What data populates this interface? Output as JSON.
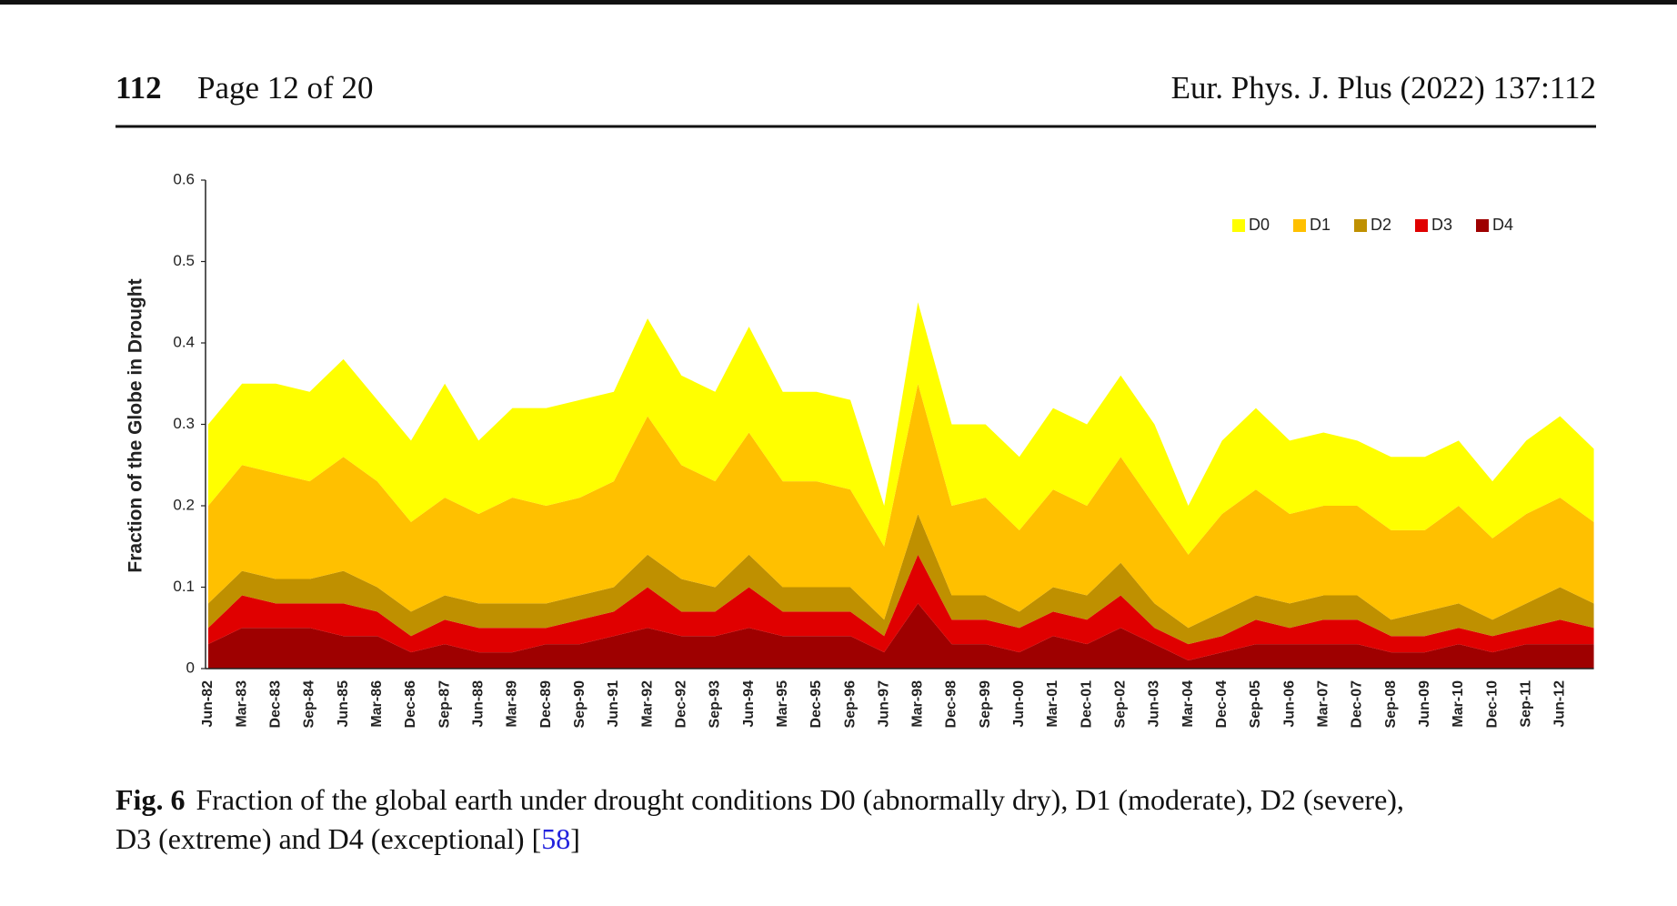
{
  "header": {
    "page_number": "112",
    "page_label": "Page 12 of 20",
    "journal": "Eur. Phys. J. Plus (2022) 137:112"
  },
  "chart_data": {
    "type": "stacked-area",
    "y_label": "Fraction of the Globe in Drought",
    "categories": [
      "Jun-82",
      "Mar-83",
      "Dec-83",
      "Sep-84",
      "Jun-85",
      "Mar-86",
      "Dec-86",
      "Sep-87",
      "Jun-88",
      "Mar-89",
      "Dec-89",
      "Sep-90",
      "Jun-91",
      "Mar-92",
      "Dec-92",
      "Sep-93",
      "Jun-94",
      "Mar-95",
      "Dec-95",
      "Sep-96",
      "Jun-97",
      "Mar-98",
      "Dec-98",
      "Sep-99",
      "Jun-00",
      "Mar-01",
      "Dec-01",
      "Sep-02",
      "Jun-03",
      "Mar-04",
      "Dec-04",
      "Sep-05",
      "Jun-06",
      "Mar-07",
      "Dec-07",
      "Sep-08",
      "Jun-09",
      "Mar-10",
      "Dec-10",
      "Sep-11",
      "Jun-12",
      null
    ],
    "series": [
      {
        "name": "D4",
        "color": "#9e0000",
        "values": [
          0.03,
          0.05,
          0.05,
          0.05,
          0.04,
          0.04,
          0.02,
          0.03,
          0.02,
          0.02,
          0.03,
          0.03,
          0.04,
          0.05,
          0.04,
          0.04,
          0.05,
          0.04,
          0.04,
          0.04,
          0.02,
          0.08,
          0.03,
          0.03,
          0.02,
          0.04,
          0.03,
          0.05,
          0.03,
          0.01,
          0.02,
          0.03,
          0.03,
          0.03,
          0.03,
          0.02,
          0.02,
          0.03,
          0.02,
          0.03,
          0.03,
          0.03
        ]
      },
      {
        "name": "D3",
        "color": "#e00000",
        "values": [
          0.02,
          0.04,
          0.03,
          0.03,
          0.04,
          0.03,
          0.02,
          0.03,
          0.03,
          0.03,
          0.02,
          0.03,
          0.03,
          0.05,
          0.03,
          0.03,
          0.05,
          0.03,
          0.03,
          0.03,
          0.02,
          0.06,
          0.03,
          0.03,
          0.03,
          0.03,
          0.03,
          0.04,
          0.02,
          0.02,
          0.02,
          0.03,
          0.02,
          0.03,
          0.03,
          0.02,
          0.02,
          0.02,
          0.02,
          0.02,
          0.03,
          0.02
        ]
      },
      {
        "name": "D2",
        "color": "#bf9000",
        "values": [
          0.03,
          0.03,
          0.03,
          0.03,
          0.04,
          0.03,
          0.03,
          0.03,
          0.03,
          0.03,
          0.03,
          0.03,
          0.03,
          0.04,
          0.04,
          0.03,
          0.04,
          0.03,
          0.03,
          0.03,
          0.02,
          0.05,
          0.03,
          0.03,
          0.02,
          0.03,
          0.03,
          0.04,
          0.03,
          0.02,
          0.03,
          0.03,
          0.03,
          0.03,
          0.03,
          0.02,
          0.03,
          0.03,
          0.02,
          0.03,
          0.04,
          0.03
        ]
      },
      {
        "name": "D1",
        "color": "#ffc000",
        "values": [
          0.12,
          0.13,
          0.13,
          0.12,
          0.14,
          0.13,
          0.11,
          0.12,
          0.11,
          0.13,
          0.12,
          0.12,
          0.13,
          0.17,
          0.14,
          0.13,
          0.15,
          0.13,
          0.13,
          0.12,
          0.09,
          0.16,
          0.11,
          0.12,
          0.1,
          0.12,
          0.11,
          0.13,
          0.12,
          0.09,
          0.12,
          0.13,
          0.11,
          0.11,
          0.11,
          0.11,
          0.1,
          0.12,
          0.1,
          0.11,
          0.11,
          0.1
        ]
      },
      {
        "name": "D0",
        "color": "#ffff00",
        "values": [
          0.1,
          0.1,
          0.11,
          0.11,
          0.12,
          0.1,
          0.1,
          0.14,
          0.09,
          0.11,
          0.12,
          0.12,
          0.11,
          0.12,
          0.11,
          0.11,
          0.13,
          0.11,
          0.11,
          0.11,
          0.05,
          0.1,
          0.1,
          0.09,
          0.09,
          0.1,
          0.1,
          0.1,
          0.1,
          0.06,
          0.09,
          0.1,
          0.09,
          0.09,
          0.08,
          0.09,
          0.09,
          0.08,
          0.07,
          0.09,
          0.1,
          0.09
        ]
      }
    ],
    "legend_order": [
      "D0",
      "D1",
      "D2",
      "D3",
      "D4"
    ],
    "legend": "top-right",
    "ylim": [
      0,
      0.6
    ],
    "yticks": [
      0,
      0.1,
      0.2,
      0.3,
      0.4,
      0.5,
      0.6
    ],
    "grid": false
  },
  "caption": {
    "label": "Fig. 6",
    "lines": [
      "Fraction of the global earth under drought conditions D0 (abnormally dry), D1 (moderate), D2 (severe),",
      "D3 (extreme) and D4 (exceptional) ["
    ],
    "citation": "58",
    "citation_end": "]"
  }
}
